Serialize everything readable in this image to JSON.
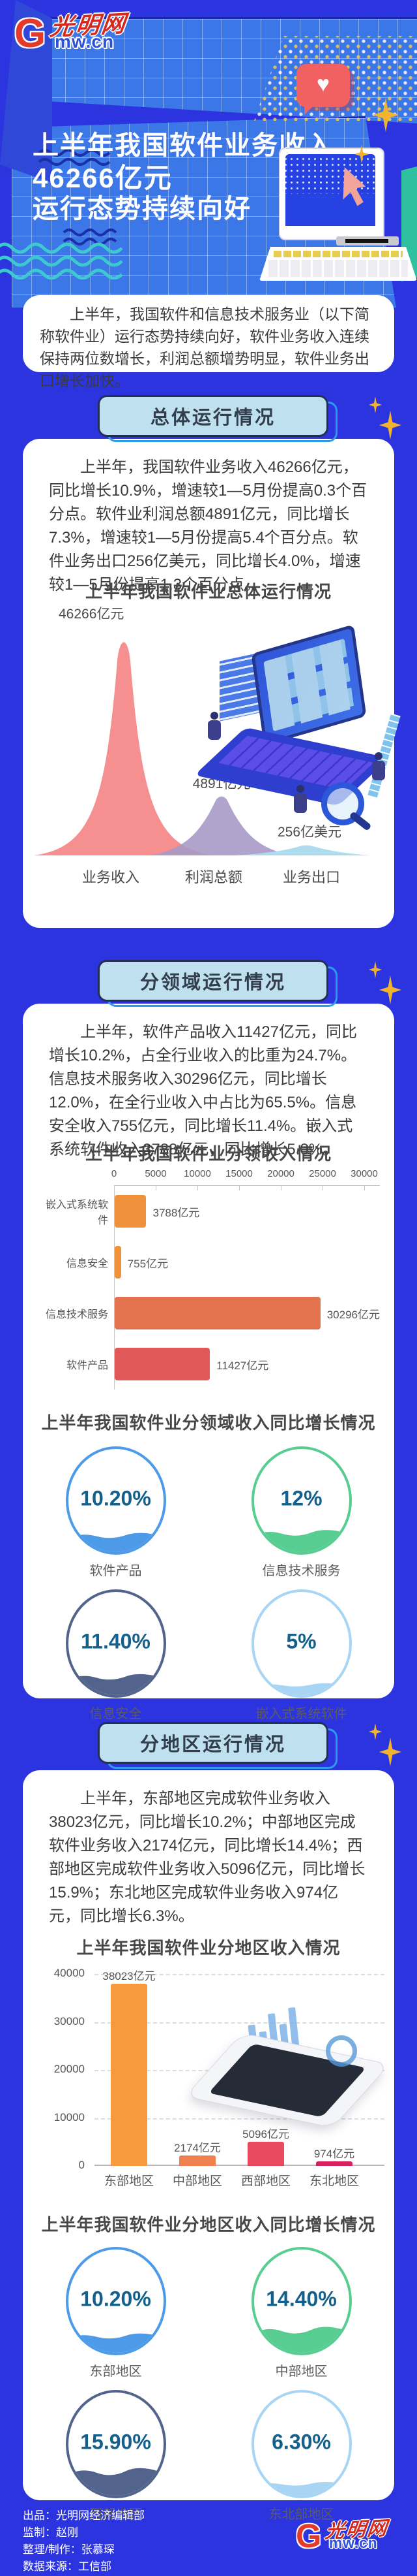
{
  "logo": {
    "initial": "G",
    "name": "光明网",
    "domain": "mw.cn"
  },
  "hero": {
    "title_line1": "上半年我国软件业务收入",
    "title_line2": "46266亿元",
    "title_line3": "运行态势持续向好"
  },
  "intro": {
    "text": "上半年，我国软件和信息技术服务业（以下简称软件业）运行态势持续向好，软件业务收入连续保持两位数增长，利润总额增势明显，软件业务出口增长加快。"
  },
  "section_overall": {
    "title": "总体运行情况",
    "paragraph": "上半年，我国软件业务收入46266亿元，同比增长10.9%，增速较1—5月份提高0.3个百分点。软件业利润总额4891亿元，同比增长7.3%，增速较1—5月份提高5.4个百分点。软件业务出口256亿美元，同比增长4.0%，增速较1—5月份提高1.3个百分点。"
  },
  "section_field": {
    "title": "分领域运行情况",
    "paragraph": "上半年，软件产品收入11427亿元，同比增长10.2%，占全行业收入的比重为24.7%。信息技术服务收入30296亿元，同比增长12.0%，在全行业收入中占比为65.5%。信息安全收入755亿元，同比增长11.4%。嵌入式系统软件收入3788亿元，同比增长5.0%。"
  },
  "section_region": {
    "title": "分地区运行情况",
    "paragraph": "上半年，东部地区完成软件业务收入38023亿元，同比增长10.2%；中部地区完成软件业务收入2174亿元，同比增长14.4%；西部地区完成软件业务收入5096亿元，同比增长15.9%；东北地区完成软件业务收入974亿元，同比增长6.3%。"
  },
  "chart_data": [
    {
      "id": "overall_peaks",
      "type": "area",
      "title": "上半年我国软件业总体运行情况",
      "categories": [
        "业务收入",
        "利润总额",
        "业务出口"
      ],
      "values": [
        46266,
        4891,
        256
      ],
      "value_labels": [
        "46266亿元",
        "4891亿元",
        "256亿美元"
      ],
      "colors": [
        "#F68F8F",
        "#A79AC6",
        "#AEDCEF"
      ]
    },
    {
      "id": "field_income",
      "type": "bar",
      "orientation": "horizontal",
      "title": "上半年我国软件业分领收入情况",
      "categories": [
        "嵌入式系统软件",
        "信息安全",
        "信息技术服务",
        "软件产品"
      ],
      "values": [
        3788,
        755,
        30296,
        11427
      ],
      "value_labels": [
        "3788亿元",
        "755亿元",
        "30296亿元",
        "11427亿元"
      ],
      "colors": [
        "#F0923B",
        "#F0923B",
        "#E2734E",
        "#E25757"
      ],
      "xlim": [
        0,
        30000
      ],
      "ticks": [
        0,
        5000,
        10000,
        15000,
        20000,
        25000,
        30000
      ],
      "grid": false
    },
    {
      "id": "field_growth",
      "type": "gauge",
      "title": "上半年我国软件业分领域收入同比增长情况",
      "items": [
        {
          "label": "软件产品",
          "value": "10.20%",
          "pct": 10.2,
          "color": "#4D9AE8"
        },
        {
          "label": "信息技术服务",
          "value": "12%",
          "pct": 12,
          "color": "#57CD92"
        },
        {
          "label": "信息安全",
          "value": "11.40%",
          "pct": 11.4,
          "color": "#53648C"
        },
        {
          "label": "嵌入式系统软件",
          "value": "5%",
          "pct": 5,
          "color": "#A9D5F5"
        }
      ]
    },
    {
      "id": "region_income",
      "type": "bar",
      "orientation": "vertical",
      "title": "上半年我国软件业分地区收入情况",
      "categories": [
        "东部地区",
        "中部地区",
        "西部地区",
        "东北地区"
      ],
      "values": [
        38023,
        2174,
        5096,
        974
      ],
      "value_labels": [
        "38023亿元",
        "2174亿元",
        "5096亿元",
        "974亿元"
      ],
      "colors": [
        "#F6993F",
        "#EF8050",
        "#E8495E",
        "#D8215F"
      ],
      "ylim": [
        0,
        40000
      ],
      "ticks": [
        0,
        10000,
        20000,
        30000,
        40000
      ],
      "grid": true
    },
    {
      "id": "region_growth",
      "type": "gauge",
      "title": "上半年我国软件业分地区收入同比增长情况",
      "items": [
        {
          "label": "东部地区",
          "value": "10.20%",
          "pct": 10.2,
          "color": "#4D9AE8"
        },
        {
          "label": "中部地区",
          "value": "14.40%",
          "pct": 14.4,
          "color": "#57CD92"
        },
        {
          "label": "西部地区",
          "value": "15.90%",
          "pct": 15.9,
          "color": "#53648C"
        },
        {
          "label": "东北部地区",
          "value": "6.30%",
          "pct": 6.3,
          "color": "#A9D5F5"
        }
      ]
    }
  ],
  "footer": {
    "lines": [
      "出品：光明网经济编辑部",
      "监制：赵刚",
      "整理/制作：张慕琛",
      "数据来源：工信部"
    ]
  }
}
